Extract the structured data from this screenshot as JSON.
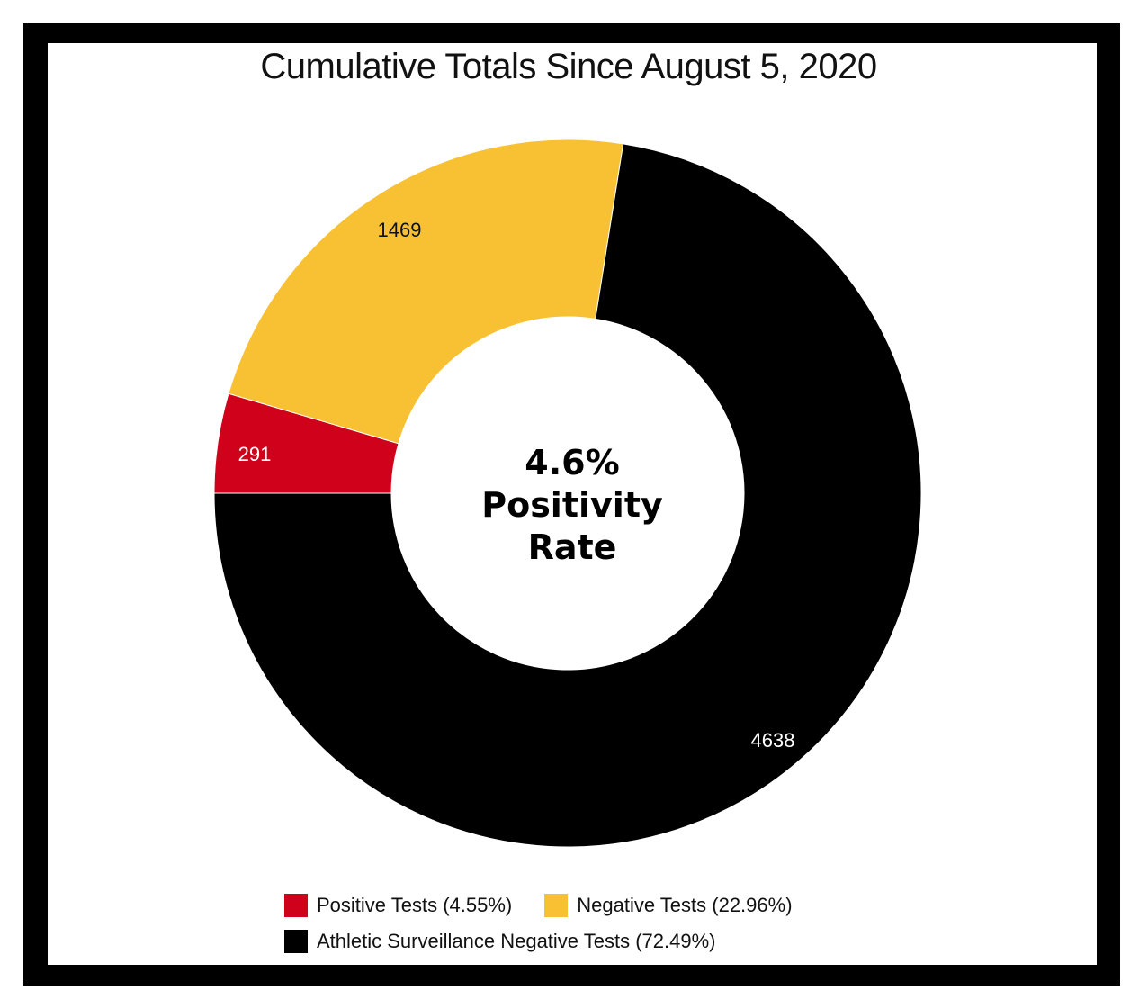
{
  "chart_data": {
    "type": "pie",
    "variant": "donut",
    "title": "Cumulative Totals Since August 5, 2020",
    "center_text": [
      "4.6%",
      "Positivity",
      "Rate"
    ],
    "slices": [
      {
        "label": "Positive Tests (4.55%)",
        "value": 291,
        "color": "#d0021b"
      },
      {
        "label": "Negative Tests (22.96%)",
        "value": 1469,
        "color": "#f8c134"
      },
      {
        "label": "Athletic Surveillance Negative Tests (72.49%)",
        "value": 4638,
        "color": "#000000"
      }
    ],
    "legend_position": "bottom"
  }
}
